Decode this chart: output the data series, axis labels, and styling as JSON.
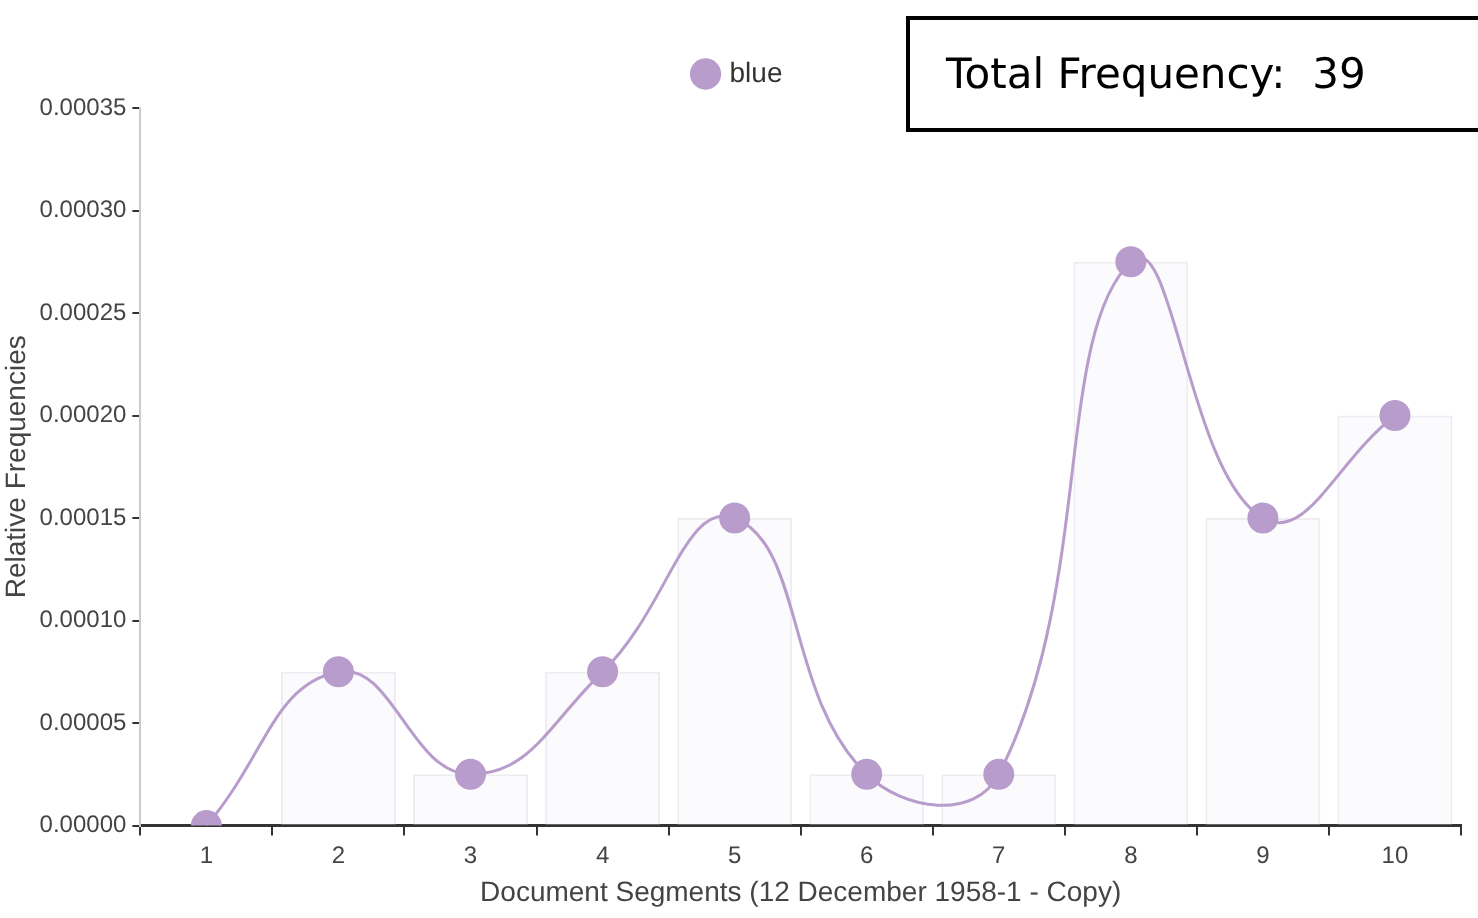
{
  "chart_data": {
    "type": "line",
    "xlabel": "Document Segments (12 December 1958-1 - Copy)",
    "ylabel": "Relative Frequencies",
    "categories": [
      "1",
      "2",
      "3",
      "4",
      "5",
      "6",
      "7",
      "8",
      "9",
      "10"
    ],
    "series": [
      {
        "type": "bar",
        "color": "#fbfafc",
        "values": [
          0,
          7.5e-05,
          2.5e-05,
          7.5e-05,
          0.00015,
          2.5e-05,
          2.5e-05,
          0.000275,
          0.00015,
          0.0002
        ]
      },
      {
        "name": "blue",
        "color": "#b89ccc",
        "values": [
          0,
          7.5e-05,
          2.5e-05,
          7.5e-05,
          0.00015,
          2.5e-05,
          2.5e-05,
          0.000275,
          0.00015,
          0.0002
        ]
      }
    ],
    "ylim": [
      0,
      0.00035
    ],
    "yticks": [
      {
        "value": 0,
        "label": "0.00000"
      },
      {
        "value": 5e-05,
        "label": "0.00005"
      },
      {
        "value": 0.0001,
        "label": "0.00010"
      },
      {
        "value": 0.00015,
        "label": "0.00015"
      },
      {
        "value": 0.0002,
        "label": "0.00020"
      },
      {
        "value": 0.00025,
        "label": "0.00025"
      },
      {
        "value": 0.0003,
        "label": "0.00030"
      },
      {
        "value": 0.00035,
        "label": "0.00035"
      }
    ],
    "annotations": [
      "Total Frequency:  39"
    ],
    "legend": "top",
    "marker": "circle",
    "grid": false
  }
}
